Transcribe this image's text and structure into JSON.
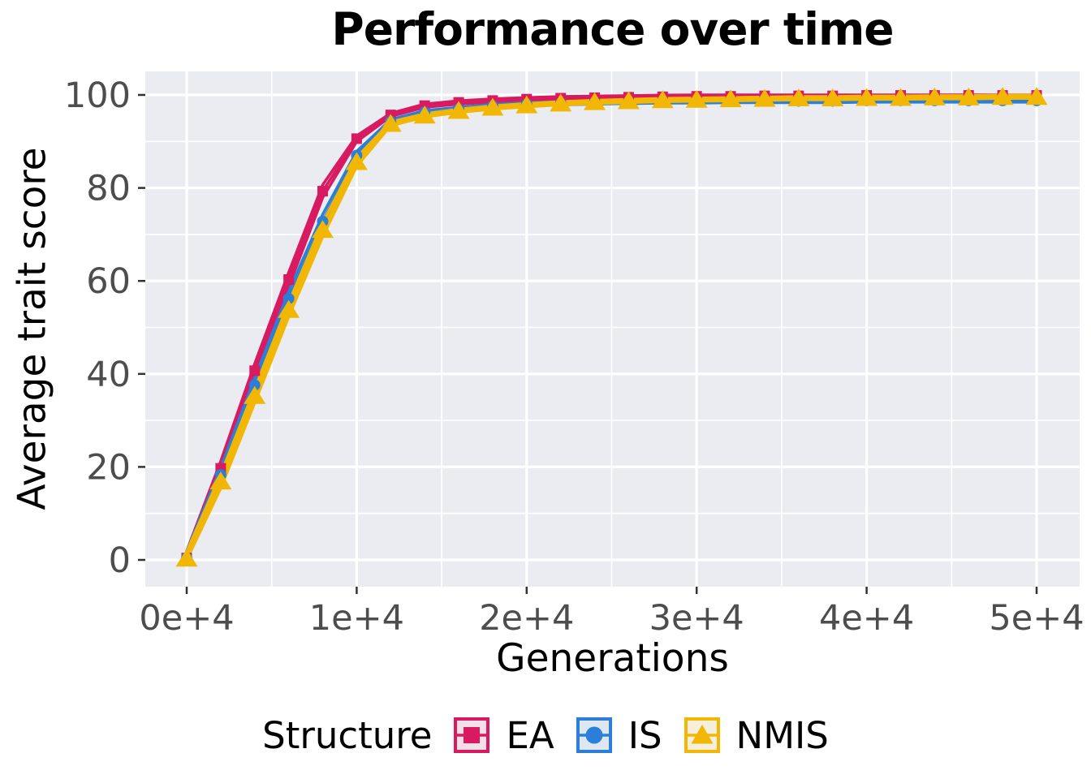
{
  "chart": {
    "title": "Performance over time",
    "x_axis": {
      "label": "Generations",
      "tick_labels": [
        "0e+4",
        "1e+4",
        "2e+4",
        "3e+4",
        "4e+4",
        "5e+4"
      ]
    },
    "y_axis": {
      "label": "Average trait score",
      "tick_labels": [
        "0",
        "20",
        "40",
        "60",
        "80",
        "100"
      ]
    },
    "legend_title": "Structure"
  },
  "chart_data": {
    "type": "line",
    "title": "Performance over time",
    "xlabel": "Generations",
    "ylabel": "Average trait score",
    "xlim": [
      0,
      50000
    ],
    "ylim": [
      0,
      100
    ],
    "x_ticks": {
      "values": [
        0,
        10000,
        20000,
        30000,
        40000,
        50000
      ],
      "labels": [
        "0e+4",
        "1e+4",
        "2e+4",
        "3e+4",
        "4e+4",
        "5e+4"
      ]
    },
    "y_ticks": {
      "values": [
        0,
        20,
        40,
        60,
        80,
        100
      ],
      "labels": [
        "0",
        "20",
        "40",
        "60",
        "80",
        "100"
      ]
    },
    "grid": true,
    "legend_position": "bottom",
    "legend_title": "Structure",
    "x": [
      0,
      2000,
      4000,
      6000,
      8000,
      10000,
      12000,
      14000,
      16000,
      18000,
      20000,
      22000,
      24000,
      26000,
      28000,
      30000,
      32000,
      34000,
      36000,
      38000,
      40000,
      42000,
      44000,
      46000,
      48000,
      50000
    ],
    "replicate_lines_per_series": 3,
    "replicate_offsets": [
      1.0,
      0,
      -1.0
    ],
    "series": [
      {
        "name": "EA",
        "marker": "square",
        "color": "#D81B60",
        "key_fill": "#F3DFE7",
        "values": [
          0.4,
          19.7,
          40.7,
          60.3,
          79.3,
          90.6,
          95.7,
          97.7,
          98.4,
          98.8,
          99.1,
          99.3,
          99.4,
          99.5,
          99.6,
          99.7,
          99.7,
          99.8,
          99.8,
          99.8,
          99.9,
          99.9,
          99.9,
          99.9,
          99.9,
          99.9
        ]
      },
      {
        "name": "IS",
        "marker": "circle",
        "color": "#2B7FD9",
        "key_fill": "#DEE7F0",
        "values": [
          0.4,
          18.3,
          37.6,
          56.2,
          72.8,
          87.0,
          94.3,
          96.3,
          97.0,
          97.6,
          98.0,
          98.2,
          98.4,
          98.5,
          98.6,
          98.6,
          98.7,
          98.7,
          98.7,
          98.7,
          98.8,
          98.8,
          98.8,
          98.8,
          98.8,
          98.8
        ]
      },
      {
        "name": "NMIS",
        "marker": "triangle",
        "color": "#F2B705",
        "key_fill": "#F5EFDB",
        "values": [
          0.3,
          16.9,
          35.3,
          53.8,
          71.0,
          85.6,
          93.8,
          95.6,
          96.6,
          97.3,
          97.8,
          98.2,
          98.5,
          98.7,
          98.9,
          99.0,
          99.1,
          99.2,
          99.3,
          99.3,
          99.4,
          99.4,
          99.5,
          99.5,
          99.6,
          99.6
        ]
      }
    ]
  },
  "colors": {
    "page_bg": "#FFFFFF",
    "panel_bg": "#EBECF2",
    "gridline": "#FFFFFF",
    "tick_mark": "#333333",
    "tick_text": "#4D4D4D",
    "axis_text": "#000000"
  }
}
